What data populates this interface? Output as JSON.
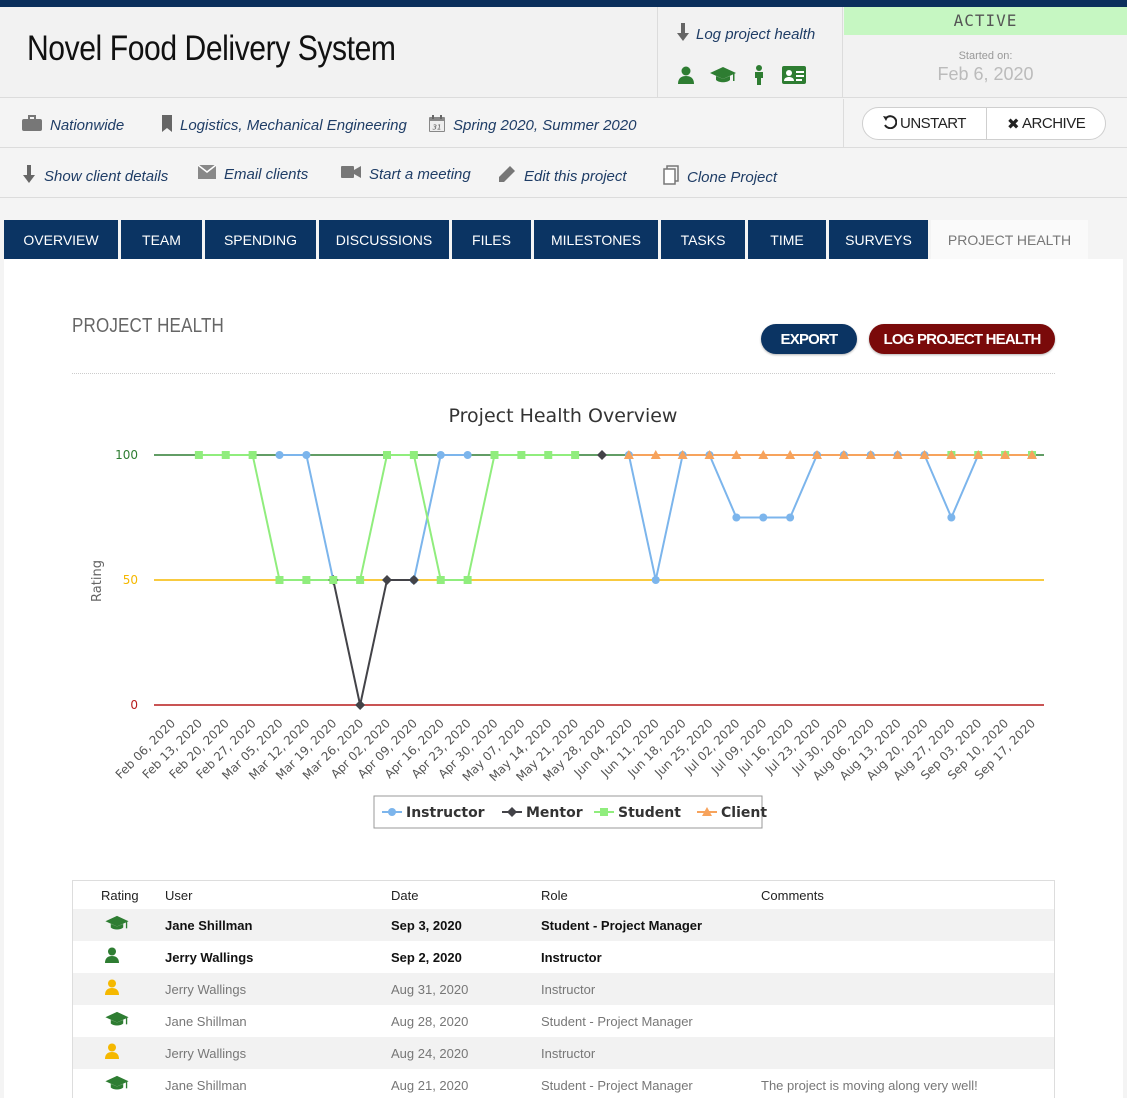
{
  "project": {
    "title": "Novel Food Delivery System",
    "log_link": "Log project health",
    "status": "ACTIVE",
    "started_label": "Started on:",
    "started_date": "Feb 6, 2020"
  },
  "meta": {
    "location": "Nationwide",
    "tags": "Logistics, Mechanical Engineering",
    "terms": "Spring 2020, Summer 2020",
    "unstart_label": "UNSTART",
    "archive_label": "ARCHIVE"
  },
  "actions": {
    "show_client": "Show client details",
    "email_clients": "Email clients",
    "start_meeting": "Start a meeting",
    "edit_project": "Edit this project",
    "clone_project": "Clone Project"
  },
  "tabs": [
    "OVERVIEW",
    "TEAM",
    "SPENDING",
    "DISCUSSIONS",
    "FILES",
    "MILESTONES",
    "TASKS",
    "TIME",
    "SURVEYS",
    "PROJECT HEALTH"
  ],
  "active_tab": "PROJECT HEALTH",
  "panel": {
    "title": "PROJECT HEALTH",
    "export_label": "EXPORT",
    "log_label": "LOG PROJECT HEALTH"
  },
  "chart_data": {
    "type": "line",
    "title": "Project Health Overview",
    "ylabel": "Rating",
    "xlabel": "",
    "ylim": [
      0,
      100
    ],
    "yticks": [
      0,
      50,
      100
    ],
    "reference_lines": [
      {
        "value": 100,
        "color": "#2e7d32"
      },
      {
        "value": 50,
        "color": "#f5b800"
      },
      {
        "value": 0,
        "color": "#b71c1c"
      }
    ],
    "categories": [
      "Feb 06, 2020",
      "Feb 13, 2020",
      "Feb 20, 2020",
      "Feb 27, 2020",
      "Mar 05, 2020",
      "Mar 12, 2020",
      "Mar 19, 2020",
      "Mar 26, 2020",
      "Apr 02, 2020",
      "Apr 09, 2020",
      "Apr 16, 2020",
      "Apr 23, 2020",
      "Apr 30, 2020",
      "May 07, 2020",
      "May 14, 2020",
      "May 21, 2020",
      "May 28, 2020",
      "Jun 04, 2020",
      "Jun 11, 2020",
      "Jun 18, 2020",
      "Jun 25, 2020",
      "Jul 02, 2020",
      "Jul 09, 2020",
      "Jul 16, 2020",
      "Jul 23, 2020",
      "Jul 30, 2020",
      "Aug 06, 2020",
      "Aug 13, 2020",
      "Aug 20, 2020",
      "Aug 27, 2020",
      "Sep 03, 2020",
      "Sep 10, 2020",
      "Sep 17, 2020"
    ],
    "series": [
      {
        "name": "Instructor",
        "color": "#7cb5ec",
        "marker": "circle",
        "values": [
          null,
          null,
          null,
          null,
          100,
          100,
          50,
          null,
          null,
          50,
          100,
          100,
          null,
          null,
          null,
          null,
          null,
          100,
          50,
          100,
          100,
          75,
          75,
          75,
          100,
          100,
          100,
          100,
          100,
          75,
          100,
          100,
          100
        ]
      },
      {
        "name": "Mentor",
        "color": "#434348",
        "marker": "diamond",
        "values": [
          null,
          null,
          null,
          null,
          null,
          null,
          50,
          0,
          50,
          50,
          null,
          null,
          null,
          null,
          null,
          null,
          100,
          null,
          null,
          null,
          null,
          null,
          null,
          null,
          null,
          null,
          null,
          null,
          null,
          null,
          null,
          null,
          null
        ]
      },
      {
        "name": "Student",
        "color": "#90ed7d",
        "marker": "square",
        "values": [
          null,
          100,
          100,
          100,
          50,
          50,
          50,
          50,
          100,
          100,
          50,
          50,
          100,
          100,
          100,
          100,
          null,
          null,
          null,
          null,
          null,
          null,
          null,
          null,
          null,
          null,
          null,
          null,
          null,
          100,
          100,
          100,
          100
        ]
      },
      {
        "name": "Client",
        "color": "#f7a35c",
        "marker": "triangle",
        "values": [
          null,
          null,
          null,
          null,
          null,
          null,
          null,
          null,
          null,
          null,
          null,
          null,
          null,
          null,
          null,
          null,
          null,
          100,
          100,
          100,
          100,
          100,
          100,
          100,
          100,
          100,
          100,
          100,
          100,
          100,
          100,
          100,
          100
        ]
      }
    ],
    "legend": "bottom-center",
    "grid": false
  },
  "table": {
    "headers": {
      "rating": "Rating",
      "user": "User",
      "date": "Date",
      "role": "Role",
      "comments": "Comments"
    },
    "rows": [
      {
        "icon": "graduation-cap-icon",
        "color": "#2e7d32",
        "user": "Jane Shillman",
        "date": "Sep 3, 2020",
        "role": "Student - Project Manager",
        "comments": "",
        "bold": true
      },
      {
        "icon": "person-icon",
        "color": "#2e7d32",
        "user": "Jerry Wallings",
        "date": "Sep 2, 2020",
        "role": "Instructor",
        "comments": "",
        "bold": true
      },
      {
        "icon": "person-icon",
        "color": "#f5b800",
        "user": "Jerry Wallings",
        "date": "Aug 31, 2020",
        "role": "Instructor",
        "comments": "",
        "bold": false
      },
      {
        "icon": "graduation-cap-icon",
        "color": "#2e7d32",
        "user": "Jane Shillman",
        "date": "Aug 28, 2020",
        "role": "Student - Project Manager",
        "comments": "",
        "bold": false
      },
      {
        "icon": "person-icon",
        "color": "#f5b800",
        "user": "Jerry Wallings",
        "date": "Aug 24, 2020",
        "role": "Instructor",
        "comments": "",
        "bold": false
      },
      {
        "icon": "graduation-cap-icon",
        "color": "#2e7d32",
        "user": "Jane Shillman",
        "date": "Aug 21, 2020",
        "role": "Student - Project Manager",
        "comments": "The project is moving along very well!",
        "bold": false
      }
    ]
  }
}
